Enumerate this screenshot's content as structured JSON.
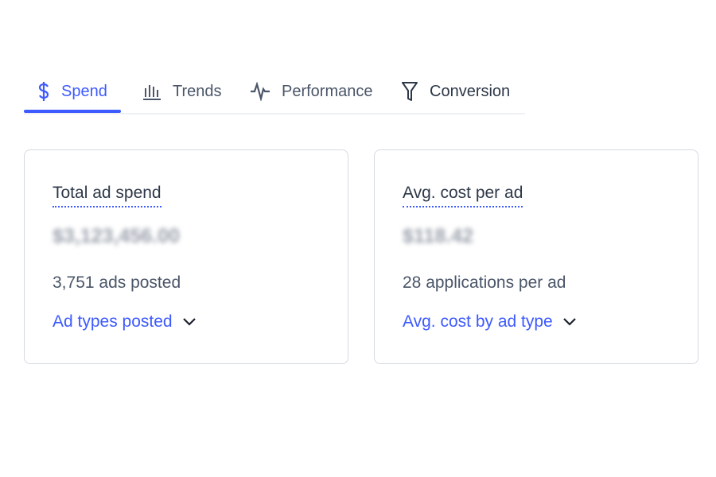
{
  "tabs": [
    {
      "label": "Spend",
      "icon": "dollar-icon",
      "active": true
    },
    {
      "label": "Trends",
      "icon": "bar-chart-icon"
    },
    {
      "label": "Performance",
      "icon": "pulse-icon"
    },
    {
      "label": "Conversion",
      "icon": "funnel-icon"
    }
  ],
  "cards": [
    {
      "title": "Total ad spend",
      "value": "$3,123,456.00",
      "sub": "3,751 ads posted",
      "link": "Ad types posted"
    },
    {
      "title": "Avg. cost per ad",
      "value": "$118.42",
      "sub": "28 applications per ad",
      "link": "Avg. cost by ad type"
    }
  ],
  "colors": {
    "accent": "#3d5afe",
    "text": "#2d3748"
  }
}
